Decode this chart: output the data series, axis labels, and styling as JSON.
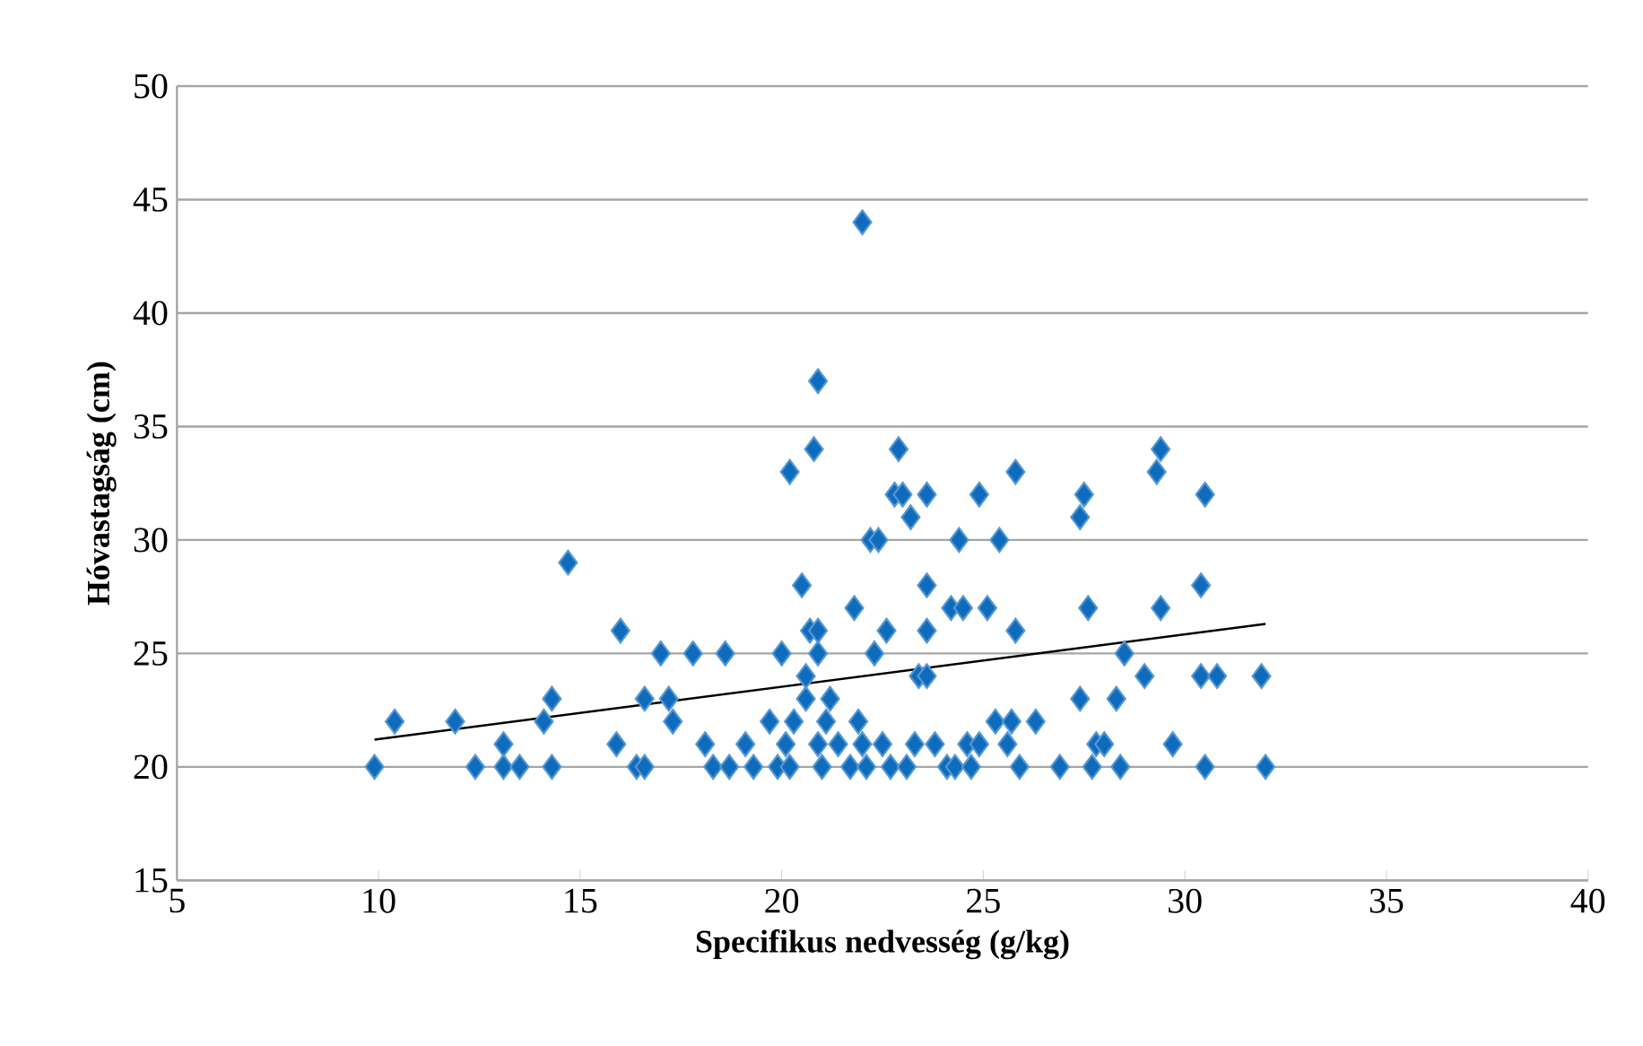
{
  "chart_data": {
    "type": "scatter",
    "xlabel": "Specifikus nedvesség (g/kg)",
    "ylabel": "Hóvastagság (cm)",
    "xlim": [
      5,
      40
    ],
    "xticks": [
      5,
      10,
      15,
      20,
      25,
      30,
      35,
      40
    ],
    "ylim": [
      15,
      50
    ],
    "yticks": [
      15,
      20,
      25,
      30,
      35,
      40,
      45,
      50
    ],
    "grid": "y",
    "marker": "diamond",
    "series": [
      {
        "color": "#0f6cbd",
        "x": [
          9.9,
          10.4,
          11.9,
          12.4,
          13.1,
          13.1,
          13.5,
          14.1,
          14.3,
          14.3,
          14.7,
          15.9,
          16.0,
          16.4,
          16.6,
          16.6,
          17.0,
          17.2,
          17.3,
          17.8,
          18.1,
          18.3,
          18.6,
          18.7,
          19.1,
          19.3,
          19.7,
          19.9,
          20.0,
          20.1,
          20.2,
          20.2,
          20.3,
          20.5,
          20.6,
          20.6,
          20.7,
          20.8,
          20.9,
          20.9,
          20.9,
          20.9,
          21.0,
          21.1,
          21.2,
          21.4,
          21.7,
          21.8,
          21.9,
          22.0,
          22.0,
          22.1,
          22.2,
          22.3,
          22.4,
          22.5,
          22.6,
          22.7,
          22.8,
          22.9,
          23.0,
          23.1,
          23.2,
          23.3,
          23.4,
          23.6,
          23.6,
          23.6,
          23.6,
          23.8,
          24.1,
          24.2,
          24.3,
          24.4,
          24.5,
          24.6,
          24.7,
          24.9,
          24.9,
          25.1,
          25.3,
          25.4,
          25.6,
          25.7,
          25.8,
          25.8,
          25.9,
          26.3,
          26.9,
          27.4,
          27.4,
          27.5,
          27.6,
          27.7,
          27.8,
          28.0,
          28.3,
          28.4,
          28.5,
          29.0,
          29.3,
          29.4,
          29.4,
          29.7,
          30.4,
          30.4,
          30.5,
          30.5,
          30.8,
          31.9,
          32.0
        ],
        "values": [
          20,
          22,
          22,
          20,
          21,
          20,
          20,
          22,
          23,
          20,
          29,
          21,
          26,
          20,
          20,
          23,
          25,
          23,
          22,
          25,
          21,
          20,
          25,
          20,
          21,
          20,
          22,
          20,
          25,
          21,
          20,
          33,
          22,
          28,
          23,
          24,
          26,
          34,
          37,
          25,
          26,
          21,
          20,
          22,
          23,
          21,
          20,
          27,
          22,
          44,
          21,
          20,
          30,
          25,
          30,
          21,
          26,
          20,
          32,
          34,
          32,
          20,
          31,
          21,
          24,
          24,
          28,
          32,
          26,
          21,
          20,
          27,
          20,
          30,
          27,
          21,
          20,
          32,
          21,
          27,
          22,
          30,
          21,
          22,
          33,
          26,
          20,
          22,
          20,
          31,
          23,
          32,
          27,
          20,
          21,
          21,
          23,
          20,
          25,
          24,
          33,
          34,
          27,
          21,
          28,
          24,
          32,
          20,
          24,
          24,
          20
        ]
      },
      {
        "type": "line",
        "color": "#000000",
        "marker": "none",
        "line_style": "solid",
        "x": [
          9.9,
          32.0
        ],
        "values": [
          21.2,
          26.3
        ]
      }
    ]
  }
}
